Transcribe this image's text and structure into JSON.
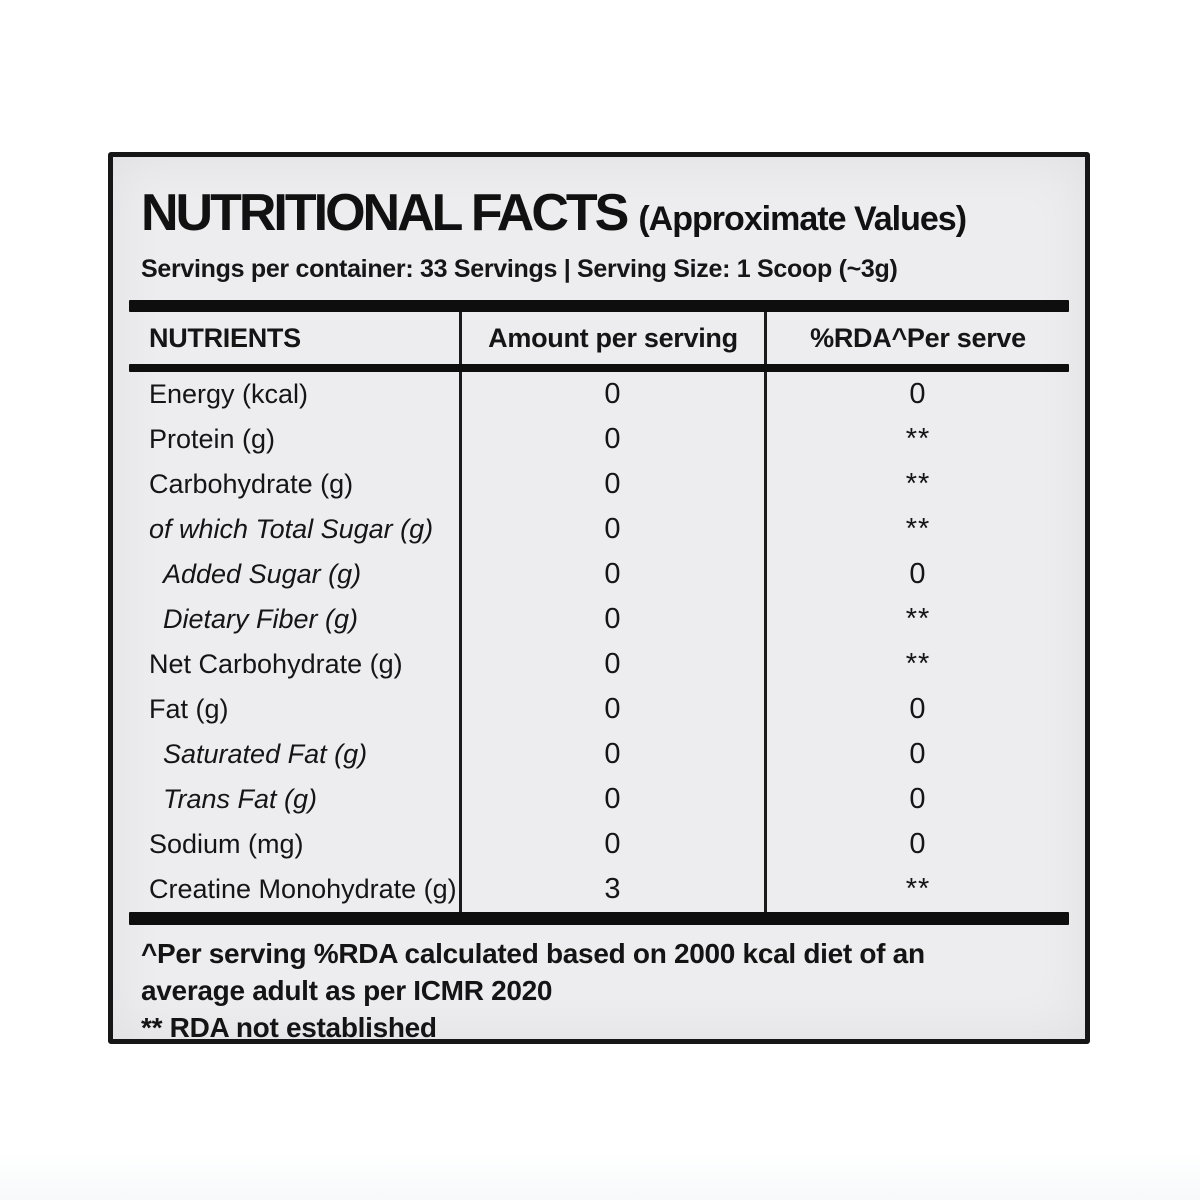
{
  "label": {
    "title": "NUTRITIONAL FACTS",
    "title_suffix": "(Approximate Values)",
    "servings_line": "Servings per container: 33 Servings | Serving Size: 1 Scoop (~3g)",
    "table": {
      "headers": {
        "nutrients": "NUTRIENTS",
        "amount": "Amount per serving",
        "rda": "%RDA^Per serve"
      },
      "rows": [
        {
          "nutrient": "Energy (kcal)",
          "amount": "0",
          "rda": "0"
        },
        {
          "nutrient": "Protein (g)",
          "amount": "0",
          "rda": "**"
        },
        {
          "nutrient": "Carbohydrate (g)",
          "amount": "0",
          "rda": "**"
        },
        {
          "nutrient": "of which Total Sugar (g)",
          "amount": "0",
          "rda": "**"
        },
        {
          "nutrient": "Added Sugar (g)",
          "amount": "0",
          "rda": "0"
        },
        {
          "nutrient": "Dietary Fiber (g)",
          "amount": "0",
          "rda": "**"
        },
        {
          "nutrient": "Net Carbohydrate (g)",
          "amount": "0",
          "rda": "**"
        },
        {
          "nutrient": "Fat (g)",
          "amount": "0",
          "rda": "0"
        },
        {
          "nutrient": "Saturated Fat (g)",
          "amount": "0",
          "rda": "0"
        },
        {
          "nutrient": "Trans Fat (g)",
          "amount": "0",
          "rda": "0"
        },
        {
          "nutrient": "Sodium (mg)",
          "amount": "0",
          "rda": "0"
        },
        {
          "nutrient": "Creatine Monohydrate (g)",
          "amount": "3",
          "rda": "**"
        }
      ]
    },
    "footnotes": [
      "^Per serving %RDA calculated based on 2000 kcal diet of an average adult as per ICMR 2020",
      "** RDA not established"
    ],
    "colors": {
      "page_background": "#ffffff",
      "label_background": "#edecee",
      "ink": "#141414"
    }
  }
}
